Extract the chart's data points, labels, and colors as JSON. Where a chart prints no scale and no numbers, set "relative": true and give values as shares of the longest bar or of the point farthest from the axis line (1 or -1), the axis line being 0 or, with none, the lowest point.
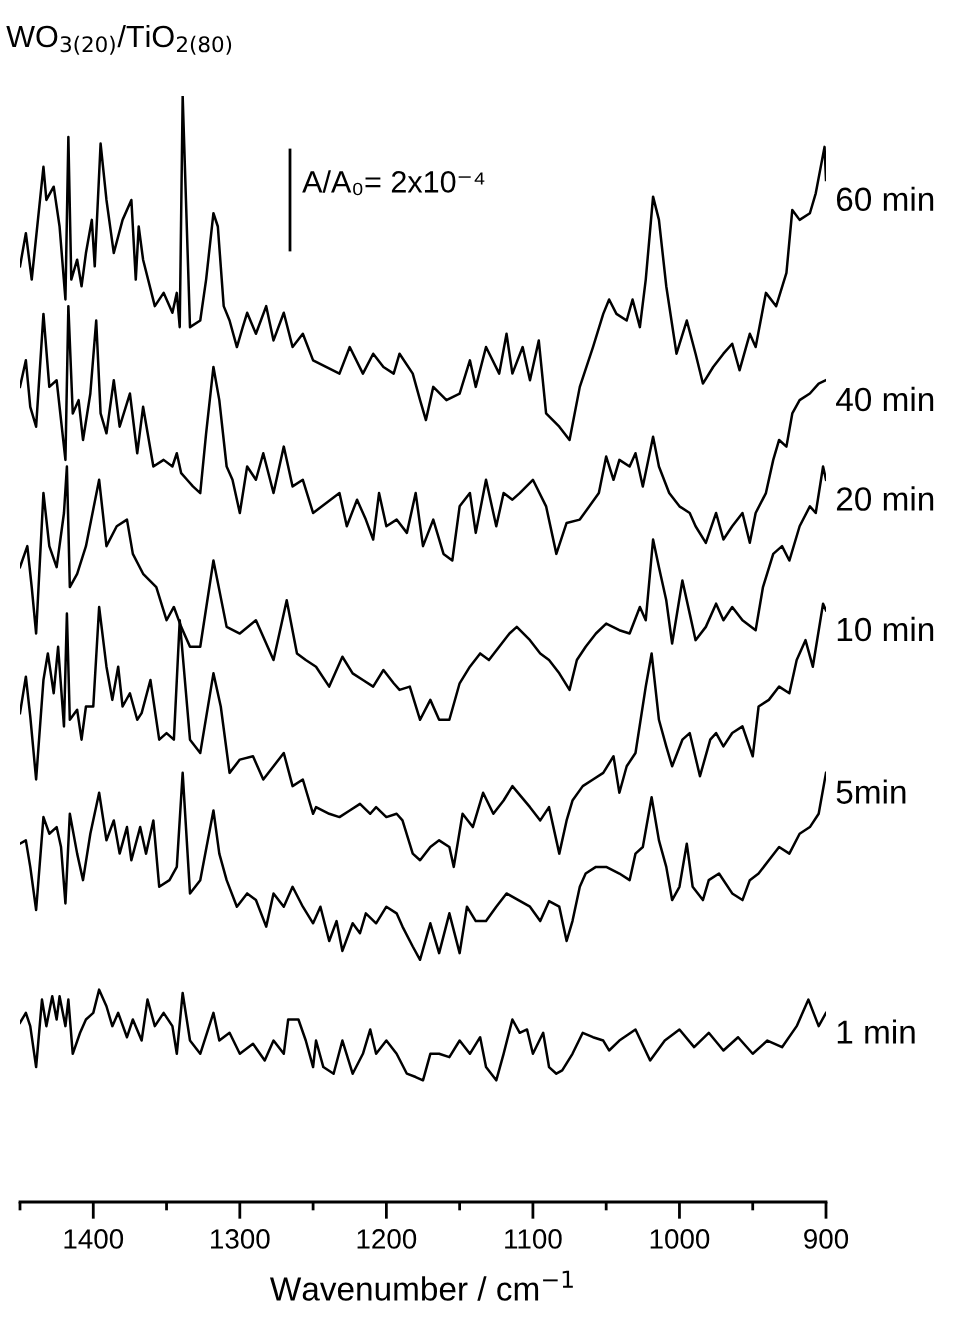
{
  "chart_data": {
    "type": "line",
    "relative": true,
    "title": "WO$_{3(20)}$/TiO$_{2(80)}$",
    "xlabel": "Wavenumber / cm$^{−1}$",
    "xlim": [
      1450,
      900
    ],
    "xticks": [
      {
        "value": 1450,
        "label": null
      },
      1400,
      {
        "value": 1350,
        "label": null
      },
      1300,
      {
        "value": 1250,
        "label": null
      },
      1200,
      {
        "value": 1150,
        "label": null
      },
      1100,
      {
        "value": 1050,
        "label": null
      },
      1000,
      {
        "value": 950,
        "label": null
      },
      900
    ],
    "tick_labels": "x",
    "grid": false,
    "line_style": "solid",
    "annotations": [
      "A/A₀= 2x10⁻⁴"
    ],
    "series": [
      {
        "name": "60 min",
        "color": "#000000",
        "x": [
          1450,
          1446,
          1442,
          1434,
          1432,
          1427,
          1423,
          1419,
          1417,
          1415,
          1411,
          1408,
          1405,
          1401,
          1399,
          1395,
          1391,
          1386,
          1380,
          1374,
          1371,
          1369,
          1366,
          1358,
          1352,
          1346,
          1343,
          1341,
          1339,
          1334,
          1327,
          1323,
          1318,
          1315,
          1311,
          1307,
          1302,
          1298,
          1295,
          1289,
          1282,
          1277,
          1270,
          1264,
          1257,
          1250,
          1232,
          1225,
          1216,
          1209,
          1202,
          1195,
          1191,
          1182,
          1177,
          1173,
          1168,
          1159,
          1150,
          1143,
          1139,
          1132,
          1123,
          1118,
          1114,
          1107,
          1102,
          1096,
          1091,
          1082,
          1075,
          1068,
          1059,
          1052,
          1048,
          1043,
          1036,
          1032,
          1027,
          1023,
          1018,
          1014,
          1009,
          1002,
          995,
          989,
          984,
          977,
          970,
          964,
          959,
          952,
          948,
          941,
          934,
          927,
          923,
          918,
          911,
          907,
          901,
          900
        ],
        "values": [
          0.846,
          0.876,
          0.834,
          0.936,
          0.906,
          0.918,
          0.882,
          0.816,
          0.963,
          0.834,
          0.852,
          0.828,
          0.858,
          0.888,
          0.846,
          0.957,
          0.906,
          0.858,
          0.888,
          0.906,
          0.834,
          0.882,
          0.852,
          0.81,
          0.822,
          0.804,
          0.822,
          0.791,
          1.0,
          0.791,
          0.797,
          0.834,
          0.894,
          0.882,
          0.81,
          0.797,
          0.773,
          0.791,
          0.804,
          0.785,
          0.81,
          0.779,
          0.804,
          0.773,
          0.785,
          0.761,
          0.749,
          0.773,
          0.749,
          0.767,
          0.755,
          0.749,
          0.767,
          0.749,
          0.725,
          0.707,
          0.737,
          0.725,
          0.731,
          0.761,
          0.737,
          0.773,
          0.749,
          0.785,
          0.749,
          0.773,
          0.743,
          0.779,
          0.713,
          0.701,
          0.689,
          0.737,
          0.773,
          0.803,
          0.816,
          0.803,
          0.797,
          0.816,
          0.791,
          0.834,
          0.909,
          0.888,
          0.828,
          0.767,
          0.797,
          0.767,
          0.74,
          0.755,
          0.767,
          0.776,
          0.752,
          0.785,
          0.773,
          0.822,
          0.81,
          0.84,
          0.897,
          0.888,
          0.894,
          0.912,
          0.954,
          0.924
        ]
      },
      {
        "name": "40 min",
        "color": "#000000",
        "x": [
          1450,
          1446,
          1443,
          1439,
          1434,
          1430,
          1425,
          1422,
          1419,
          1417,
          1414,
          1410,
          1407,
          1402,
          1398,
          1395,
          1391,
          1386,
          1382,
          1375,
          1370,
          1366,
          1359,
          1352,
          1346,
          1343,
          1340,
          1336,
          1332,
          1327,
          1323,
          1318,
          1314,
          1309,
          1305,
          1300,
          1295,
          1289,
          1284,
          1277,
          1270,
          1264,
          1257,
          1250,
          1232,
          1227,
          1220,
          1214,
          1209,
          1205,
          1200,
          1193,
          1186,
          1180,
          1175,
          1168,
          1161,
          1155,
          1150,
          1143,
          1139,
          1132,
          1125,
          1120,
          1114,
          1109,
          1100,
          1091,
          1084,
          1077,
          1068,
          1055,
          1050,
          1045,
          1041,
          1034,
          1030,
          1025,
          1018,
          1014,
          1007,
          1000,
          993,
          989,
          982,
          975,
          970,
          964,
          957,
          952,
          948,
          941,
          936,
          932,
          927,
          923,
          918,
          911,
          905,
          900
        ],
        "values": [
          0.737,
          0.761,
          0.719,
          0.701,
          0.803,
          0.737,
          0.743,
          0.707,
          0.671,
          0.81,
          0.713,
          0.725,
          0.689,
          0.731,
          0.797,
          0.713,
          0.695,
          0.743,
          0.701,
          0.731,
          0.677,
          0.719,
          0.665,
          0.671,
          0.665,
          0.677,
          0.659,
          0.653,
          0.647,
          0.641,
          0.695,
          0.755,
          0.725,
          0.665,
          0.653,
          0.623,
          0.665,
          0.653,
          0.677,
          0.641,
          0.683,
          0.647,
          0.653,
          0.623,
          0.641,
          0.611,
          0.635,
          0.617,
          0.599,
          0.641,
          0.611,
          0.617,
          0.605,
          0.641,
          0.593,
          0.617,
          0.586,
          0.58,
          0.629,
          0.641,
          0.605,
          0.653,
          0.611,
          0.641,
          0.635,
          0.641,
          0.653,
          0.629,
          0.586,
          0.614,
          0.617,
          0.641,
          0.674,
          0.653,
          0.671,
          0.665,
          0.677,
          0.647,
          0.692,
          0.665,
          0.641,
          0.629,
          0.623,
          0.611,
          0.596,
          0.623,
          0.599,
          0.611,
          0.623,
          0.596,
          0.623,
          0.641,
          0.671,
          0.689,
          0.683,
          0.713,
          0.725,
          0.731,
          0.74,
          0.743
        ]
      },
      {
        "name": "20 min",
        "color": "#000000",
        "x": [
          1450,
          1445,
          1442,
          1439,
          1434,
          1430,
          1425,
          1420,
          1418,
          1416,
          1411,
          1405,
          1396,
          1391,
          1384,
          1377,
          1373,
          1366,
          1357,
          1350,
          1345,
          1340,
          1334,
          1327,
          1318,
          1309,
          1300,
          1289,
          1277,
          1268,
          1261,
          1255,
          1248,
          1239,
          1230,
          1223,
          1216,
          1209,
          1202,
          1195,
          1191,
          1184,
          1177,
          1170,
          1164,
          1157,
          1150,
          1143,
          1136,
          1130,
          1123,
          1116,
          1111,
          1102,
          1095,
          1089,
          1082,
          1075,
          1070,
          1064,
          1057,
          1050,
          1041,
          1034,
          1027,
          1023,
          1018,
          1014,
          1009,
          1005,
          998,
          993,
          989,
          982,
          975,
          970,
          964,
          957,
          948,
          943,
          936,
          930,
          925,
          918,
          911,
          907,
          902,
          900
        ],
        "values": [
          0.574,
          0.593,
          0.556,
          0.514,
          0.641,
          0.593,
          0.574,
          0.623,
          0.665,
          0.556,
          0.568,
          0.593,
          0.653,
          0.593,
          0.611,
          0.617,
          0.586,
          0.568,
          0.556,
          0.526,
          0.538,
          0.52,
          0.502,
          0.502,
          0.58,
          0.52,
          0.514,
          0.526,
          0.49,
          0.544,
          0.496,
          0.49,
          0.484,
          0.466,
          0.493,
          0.478,
          0.472,
          0.466,
          0.481,
          0.469,
          0.463,
          0.466,
          0.436,
          0.454,
          0.436,
          0.436,
          0.469,
          0.484,
          0.496,
          0.49,
          0.502,
          0.514,
          0.52,
          0.508,
          0.496,
          0.49,
          0.478,
          0.463,
          0.49,
          0.502,
          0.514,
          0.523,
          0.517,
          0.514,
          0.538,
          0.526,
          0.599,
          0.574,
          0.544,
          0.505,
          0.562,
          0.532,
          0.508,
          0.52,
          0.541,
          0.526,
          0.538,
          0.526,
          0.517,
          0.556,
          0.586,
          0.593,
          0.58,
          0.611,
          0.629,
          0.623,
          0.665,
          0.653
        ]
      },
      {
        "name": "10 min",
        "color": "#000000",
        "x": [
          1450,
          1446,
          1443,
          1439,
          1434,
          1431,
          1427,
          1424,
          1420,
          1418,
          1416,
          1411,
          1408,
          1405,
          1400,
          1396,
          1391,
          1387,
          1383,
          1380,
          1375,
          1370,
          1367,
          1361,
          1355,
          1350,
          1345,
          1341,
          1334,
          1327,
          1318,
          1313,
          1307,
          1300,
          1291,
          1284,
          1277,
          1270,
          1264,
          1257,
          1250,
          1248,
          1239,
          1232,
          1225,
          1218,
          1211,
          1207,
          1200,
          1193,
          1189,
          1182,
          1177,
          1170,
          1164,
          1157,
          1154,
          1148,
          1141,
          1134,
          1127,
          1120,
          1114,
          1102,
          1095,
          1089,
          1082,
          1077,
          1073,
          1066,
          1059,
          1052,
          1045,
          1041,
          1036,
          1030,
          1023,
          1019,
          1014,
          1009,
          1005,
          998,
          993,
          986,
          979,
          975,
          970,
          964,
          957,
          950,
          946,
          939,
          932,
          925,
          920,
          914,
          909,
          902,
          900
        ],
        "values": [
          0.442,
          0.475,
          0.439,
          0.382,
          0.472,
          0.496,
          0.46,
          0.502,
          0.43,
          0.532,
          0.436,
          0.445,
          0.418,
          0.448,
          0.448,
          0.538,
          0.484,
          0.454,
          0.484,
          0.448,
          0.46,
          0.436,
          0.442,
          0.472,
          0.418,
          0.424,
          0.418,
          0.526,
          0.418,
          0.406,
          0.478,
          0.448,
          0.388,
          0.4,
          0.403,
          0.382,
          0.394,
          0.406,
          0.376,
          0.382,
          0.351,
          0.357,
          0.351,
          0.348,
          0.354,
          0.36,
          0.351,
          0.357,
          0.348,
          0.351,
          0.345,
          0.315,
          0.309,
          0.321,
          0.327,
          0.321,
          0.303,
          0.351,
          0.339,
          0.37,
          0.351,
          0.363,
          0.376,
          0.357,
          0.345,
          0.357,
          0.315,
          0.345,
          0.363,
          0.376,
          0.382,
          0.388,
          0.403,
          0.37,
          0.394,
          0.406,
          0.466,
          0.496,
          0.436,
          0.412,
          0.394,
          0.418,
          0.424,
          0.385,
          0.418,
          0.424,
          0.412,
          0.424,
          0.43,
          0.403,
          0.448,
          0.454,
          0.466,
          0.46,
          0.49,
          0.508,
          0.484,
          0.541,
          0.535
        ]
      },
      {
        "name": "5min",
        "color": "#000000",
        "x": [
          1450,
          1446,
          1443,
          1439,
          1434,
          1430,
          1425,
          1422,
          1419,
          1416,
          1411,
          1407,
          1402,
          1396,
          1391,
          1386,
          1382,
          1377,
          1374,
          1368,
          1364,
          1359,
          1355,
          1348,
          1343,
          1339,
          1334,
          1327,
          1318,
          1314,
          1309,
          1302,
          1295,
          1289,
          1282,
          1277,
          1270,
          1264,
          1257,
          1250,
          1245,
          1239,
          1234,
          1230,
          1223,
          1218,
          1214,
          1207,
          1200,
          1193,
          1189,
          1182,
          1177,
          1170,
          1164,
          1157,
          1150,
          1145,
          1139,
          1132,
          1125,
          1118,
          1102,
          1095,
          1089,
          1082,
          1077,
          1073,
          1068,
          1064,
          1057,
          1050,
          1041,
          1034,
          1030,
          1025,
          1019,
          1014,
          1009,
          1005,
          1000,
          995,
          991,
          984,
          980,
          973,
          964,
          957,
          952,
          946,
          939,
          932,
          925,
          918,
          911,
          905,
          900
        ],
        "values": [
          0.324,
          0.327,
          0.303,
          0.264,
          0.348,
          0.333,
          0.339,
          0.321,
          0.27,
          0.351,
          0.315,
          0.291,
          0.333,
          0.37,
          0.327,
          0.345,
          0.315,
          0.339,
          0.309,
          0.339,
          0.315,
          0.345,
          0.285,
          0.291,
          0.303,
          0.388,
          0.279,
          0.291,
          0.354,
          0.315,
          0.291,
          0.267,
          0.279,
          0.273,
          0.249,
          0.279,
          0.267,
          0.285,
          0.267,
          0.252,
          0.267,
          0.236,
          0.254,
          0.227,
          0.252,
          0.243,
          0.261,
          0.252,
          0.267,
          0.261,
          0.249,
          0.231,
          0.219,
          0.252,
          0.225,
          0.261,
          0.225,
          0.267,
          0.254,
          0.254,
          0.267,
          0.279,
          0.267,
          0.254,
          0.272,
          0.267,
          0.236,
          0.254,
          0.285,
          0.297,
          0.303,
          0.303,
          0.297,
          0.291,
          0.315,
          0.321,
          0.366,
          0.327,
          0.303,
          0.273,
          0.285,
          0.324,
          0.285,
          0.273,
          0.291,
          0.297,
          0.279,
          0.273,
          0.291,
          0.297,
          0.309,
          0.321,
          0.315,
          0.333,
          0.339,
          0.351,
          0.388
        ]
      },
      {
        "name": "1 min",
        "color": "#000000",
        "x": [
          1450,
          1446,
          1443,
          1439,
          1435,
          1432,
          1428,
          1425,
          1423,
          1419,
          1417,
          1414,
          1409,
          1405,
          1400,
          1396,
          1391,
          1387,
          1383,
          1377,
          1373,
          1367,
          1363,
          1358,
          1352,
          1346,
          1343,
          1339,
          1334,
          1327,
          1318,
          1314,
          1307,
          1300,
          1291,
          1283,
          1277,
          1270,
          1267,
          1260,
          1255,
          1250,
          1248,
          1243,
          1236,
          1230,
          1223,
          1216,
          1211,
          1207,
          1200,
          1193,
          1186,
          1180,
          1175,
          1170,
          1164,
          1157,
          1150,
          1143,
          1136,
          1132,
          1125,
          1120,
          1114,
          1109,
          1104,
          1100,
          1093,
          1089,
          1084,
          1080,
          1073,
          1066,
          1059,
          1052,
          1048,
          1041,
          1030,
          1020,
          1010,
          1000,
          990,
          980,
          970,
          960,
          950,
          940,
          930,
          920,
          912,
          905,
          900
        ],
        "values": [
          0.162,
          0.171,
          0.159,
          0.122,
          0.183,
          0.159,
          0.186,
          0.165,
          0.186,
          0.159,
          0.183,
          0.134,
          0.153,
          0.165,
          0.171,
          0.192,
          0.177,
          0.159,
          0.171,
          0.149,
          0.165,
          0.146,
          0.183,
          0.159,
          0.171,
          0.159,
          0.134,
          0.189,
          0.146,
          0.134,
          0.171,
          0.146,
          0.153,
          0.134,
          0.143,
          0.128,
          0.146,
          0.134,
          0.165,
          0.165,
          0.146,
          0.122,
          0.146,
          0.122,
          0.116,
          0.146,
          0.116,
          0.134,
          0.156,
          0.134,
          0.146,
          0.134,
          0.116,
          0.113,
          0.11,
          0.134,
          0.134,
          0.131,
          0.146,
          0.134,
          0.149,
          0.122,
          0.11,
          0.134,
          0.165,
          0.153,
          0.156,
          0.134,
          0.153,
          0.122,
          0.116,
          0.119,
          0.134,
          0.153,
          0.149,
          0.146,
          0.137,
          0.146,
          0.156,
          0.128,
          0.146,
          0.156,
          0.14,
          0.153,
          0.137,
          0.149,
          0.134,
          0.146,
          0.14,
          0.159,
          0.183,
          0.159,
          0.171
        ]
      }
    ]
  }
}
